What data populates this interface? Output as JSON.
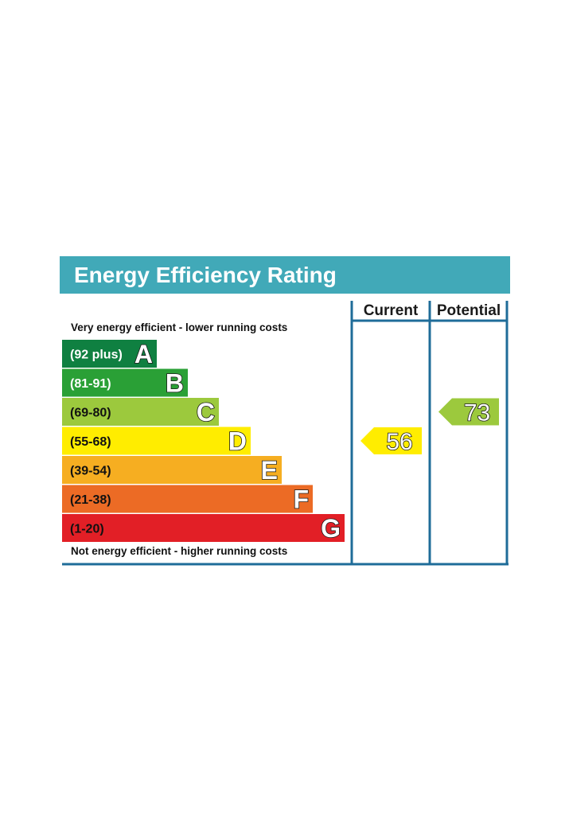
{
  "title": "Energy Efficiency Rating",
  "columns": {
    "current": "Current",
    "potential": "Potential"
  },
  "top_note": "Very energy efficient - lower running costs",
  "bottom_note": "Not energy efficient - higher running costs",
  "colors": {
    "header": "#41a9b8",
    "frame": "#1f6c99",
    "bands": [
      "#0f8041",
      "#2aa036",
      "#9cc93d",
      "#ffed00",
      "#f6ae21",
      "#ec6b25",
      "#e21f26"
    ]
  },
  "chart_data": {
    "type": "bar",
    "title": "Energy Efficiency Rating",
    "bands": [
      {
        "label": "(92 plus)",
        "letter": "A",
        "min": 92,
        "max": 100,
        "color": "#0f8041",
        "label_color": "#ffffff"
      },
      {
        "label": "(81-91)",
        "letter": "B",
        "min": 81,
        "max": 91,
        "color": "#2aa036",
        "label_color": "#ffffff"
      },
      {
        "label": "(69-80)",
        "letter": "C",
        "min": 69,
        "max": 80,
        "color": "#9cc93d",
        "label_color": "#111111"
      },
      {
        "label": "(55-68)",
        "letter": "D",
        "min": 55,
        "max": 68,
        "color": "#ffed00",
        "label_color": "#111111"
      },
      {
        "label": "(39-54)",
        "letter": "E",
        "min": 39,
        "max": 54,
        "color": "#f6ae21",
        "label_color": "#111111"
      },
      {
        "label": "(21-38)",
        "letter": "F",
        "min": 21,
        "max": 38,
        "color": "#ec6b25",
        "label_color": "#111111"
      },
      {
        "label": "(1-20)",
        "letter": "G",
        "min": 1,
        "max": 20,
        "color": "#e21f26",
        "label_color": "#111111"
      }
    ],
    "current": {
      "value": 56,
      "band": "D",
      "color": "#ffed00"
    },
    "potential": {
      "value": 73,
      "band": "C",
      "color": "#9cc93d"
    }
  }
}
